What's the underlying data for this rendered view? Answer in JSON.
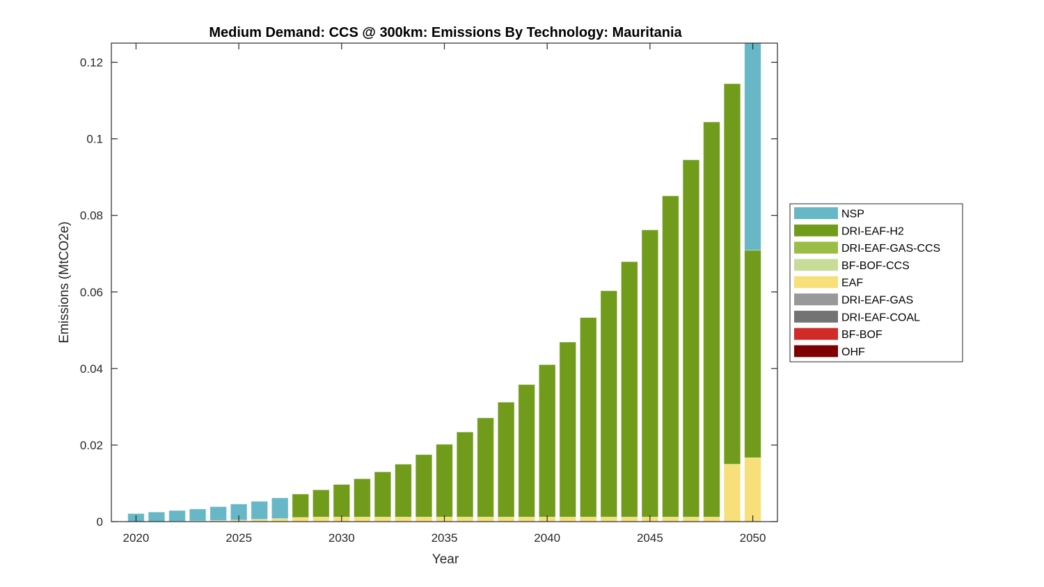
{
  "chart_data": {
    "type": "bar",
    "stacked": true,
    "title": "Medium Demand: CCS @ 300km: Emissions By Technology: Mauritania",
    "xlabel": "Year",
    "ylabel": "Emissions (MtCO2e)",
    "xlim": [
      2018.8,
      2051.2
    ],
    "ylim": [
      0,
      0.125
    ],
    "grid": false,
    "legend_position": "right",
    "x": [
      2020,
      2021,
      2022,
      2023,
      2024,
      2025,
      2026,
      2027,
      2028,
      2029,
      2030,
      2031,
      2032,
      2033,
      2034,
      2035,
      2036,
      2037,
      2038,
      2039,
      2040,
      2041,
      2042,
      2043,
      2044,
      2045,
      2046,
      2047,
      2048,
      2049,
      2050
    ],
    "xticks": [
      2020,
      2025,
      2030,
      2035,
      2040,
      2045,
      2050
    ],
    "xtick_labels": [
      "2020",
      "2025",
      "2030",
      "2035",
      "2040",
      "2045",
      "2050"
    ],
    "yticks": [
      0,
      0.02,
      0.04,
      0.06,
      0.08,
      0.1,
      0.12
    ],
    "ytick_labels": [
      "0",
      "0.02",
      "0.04",
      "0.06",
      "0.08",
      "0.1",
      "0.12"
    ],
    "series": [
      {
        "name": "OHF",
        "color": "#7F0000",
        "values": [
          0,
          0,
          0,
          0,
          0,
          0,
          0,
          0,
          0,
          0,
          0,
          0,
          0,
          0,
          0,
          0,
          0,
          0,
          0,
          0,
          0,
          0,
          0,
          0,
          0,
          0,
          0,
          0,
          0,
          0,
          0
        ]
      },
      {
        "name": "BF-BOF",
        "color": "#D12A27",
        "values": [
          0,
          0,
          0,
          0,
          0,
          0,
          0,
          0,
          0,
          0,
          0,
          0,
          0,
          0,
          0,
          0,
          0,
          0,
          0,
          0,
          0,
          0,
          0,
          0,
          0,
          0,
          0,
          0,
          0,
          0,
          0
        ]
      },
      {
        "name": "DRI-EAF-COAL",
        "color": "#737373",
        "values": [
          0,
          0,
          0,
          0,
          0,
          0,
          0,
          0,
          0,
          0,
          0,
          0,
          0,
          0,
          0,
          0,
          0,
          0,
          0,
          0,
          0,
          0,
          0,
          0,
          0,
          0,
          0,
          0,
          0,
          0,
          0
        ]
      },
      {
        "name": "DRI-EAF-GAS",
        "color": "#999999",
        "values": [
          0,
          0,
          0,
          0,
          0,
          0,
          0,
          0,
          0,
          0,
          0,
          0,
          0,
          0,
          0,
          0,
          0,
          0,
          0,
          0,
          0,
          0,
          0,
          0,
          0,
          0,
          0,
          0,
          0,
          0,
          0
        ]
      },
      {
        "name": "EAF",
        "color": "#F7DF7A",
        "values": [
          0,
          0,
          0.0001,
          0.0002,
          0.0003,
          0.0004,
          0.0006,
          0.0008,
          0.0011,
          0.0012,
          0.0012,
          0.0012,
          0.0012,
          0.0012,
          0.0012,
          0.0012,
          0.0012,
          0.0012,
          0.0012,
          0.0012,
          0.0012,
          0.0012,
          0.0012,
          0.0012,
          0.0012,
          0.0012,
          0.0012,
          0.0012,
          0.0012,
          0.015,
          0.0167
        ]
      },
      {
        "name": "BF-BOF-CCS",
        "color": "#C8DC9A",
        "values": [
          0,
          0,
          0,
          0,
          0,
          0,
          0,
          0,
          0,
          0,
          0,
          0,
          0,
          0,
          0,
          0,
          0,
          0,
          0,
          0,
          0,
          0,
          0,
          0,
          0,
          0,
          0,
          0,
          0,
          0,
          0
        ]
      },
      {
        "name": "DRI-EAF-GAS-CCS",
        "color": "#9ABD45",
        "values": [
          0,
          0,
          0,
          0,
          0,
          0,
          0,
          0,
          0,
          0,
          0,
          0,
          0,
          0,
          0,
          0,
          0,
          0,
          0,
          0,
          0,
          0,
          0,
          0,
          0,
          0,
          0,
          0,
          0,
          0,
          0
        ]
      },
      {
        "name": "DRI-EAF-H2",
        "color": "#719B1A",
        "values": [
          0,
          0,
          0,
          0,
          0,
          0,
          0,
          0,
          0.0061,
          0.0071,
          0.0085,
          0.01,
          0.0118,
          0.0138,
          0.0163,
          0.019,
          0.0222,
          0.0259,
          0.03,
          0.0346,
          0.0398,
          0.0457,
          0.0521,
          0.0591,
          0.0667,
          0.075,
          0.0839,
          0.0933,
          0.1032,
          0.0994,
          0.0542
        ]
      },
      {
        "name": "NSP",
        "color": "#67B7C7",
        "values": [
          0.0021,
          0.0025,
          0.0028,
          0.0031,
          0.0036,
          0.0042,
          0.0047,
          0.0054,
          0,
          0,
          0,
          0,
          0,
          0,
          0,
          0,
          0,
          0,
          0,
          0,
          0,
          0,
          0,
          0,
          0,
          0,
          0,
          0,
          0,
          0,
          0.0546
        ]
      }
    ],
    "legend_order": [
      "NSP",
      "DRI-EAF-H2",
      "DRI-EAF-GAS-CCS",
      "BF-BOF-CCS",
      "EAF",
      "DRI-EAF-GAS",
      "DRI-EAF-COAL",
      "BF-BOF",
      "OHF"
    ]
  }
}
